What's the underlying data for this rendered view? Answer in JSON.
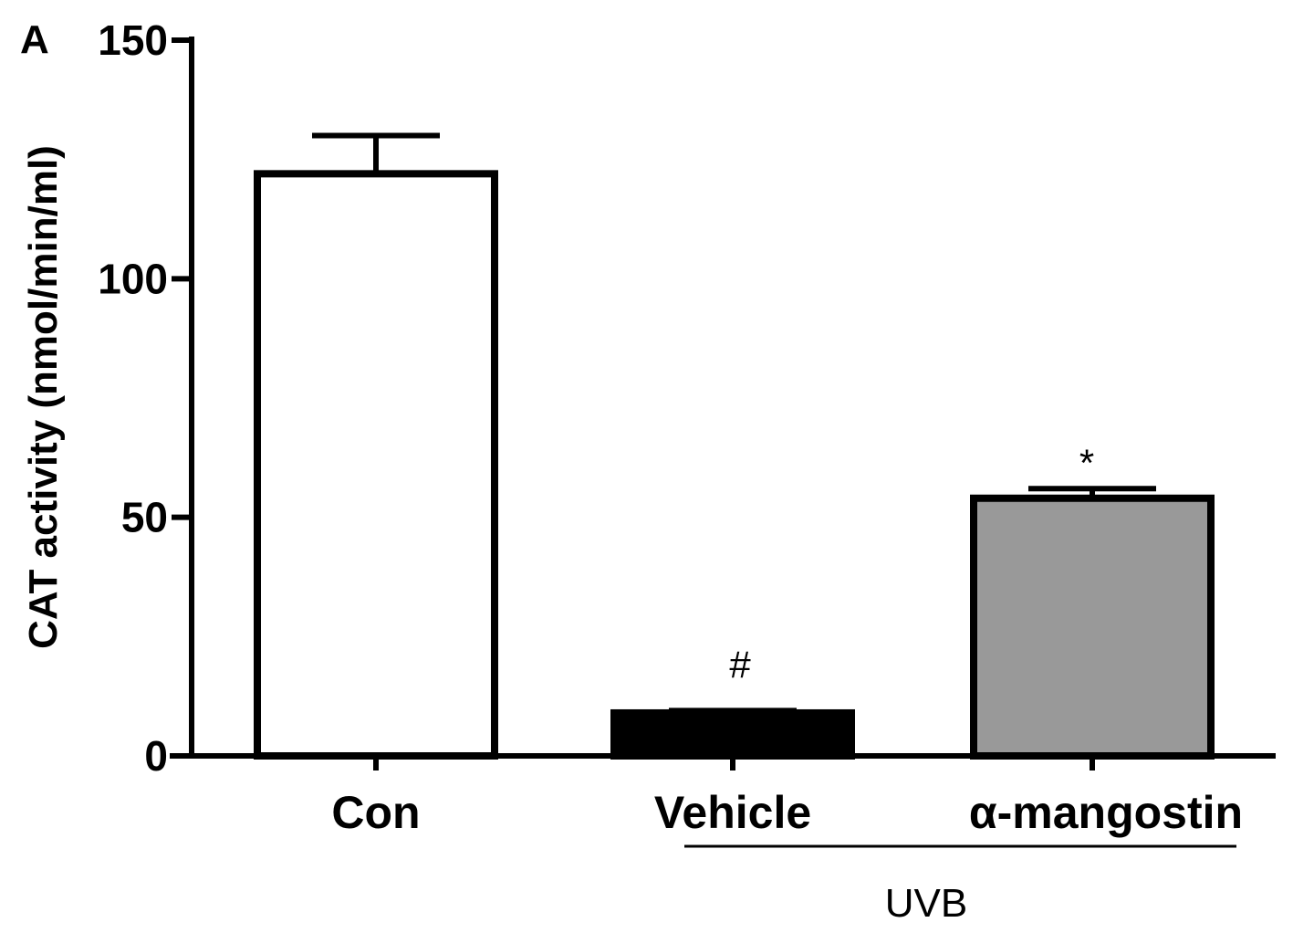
{
  "panel_label": "A",
  "chart_data": {
    "type": "bar",
    "categories": [
      "Con",
      "Vehicle",
      "α-mangostin"
    ],
    "values": [
      122,
      9,
      54
    ],
    "errors": [
      8,
      0.5,
      2
    ],
    "annotations": [
      "",
      "#",
      "*"
    ],
    "fills": [
      "#ffffff",
      "#000000",
      "#999999"
    ],
    "ylabel": "CAT activity (nmol/min/ml)",
    "yticks": [
      0,
      50,
      100,
      150
    ],
    "ylim": [
      0,
      150
    ],
    "group_label": "UVB",
    "group_members": [
      "Vehicle",
      "α-mangostin"
    ],
    "grid": false,
    "legend": "none"
  }
}
